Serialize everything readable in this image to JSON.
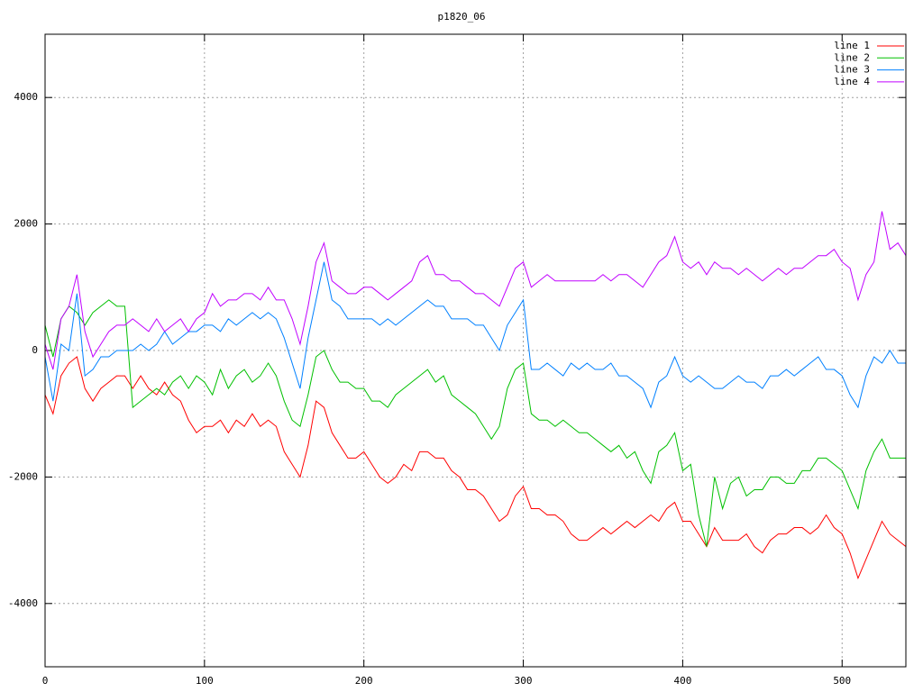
{
  "chart_data": {
    "type": "line",
    "title": "p1820_06",
    "x": [
      0,
      5,
      10,
      15,
      20,
      25,
      30,
      35,
      40,
      45,
      50,
      55,
      60,
      65,
      70,
      75,
      80,
      85,
      90,
      95,
      100,
      105,
      110,
      115,
      120,
      125,
      130,
      135,
      140,
      145,
      150,
      155,
      160,
      165,
      170,
      175,
      180,
      185,
      190,
      195,
      200,
      205,
      210,
      215,
      220,
      225,
      230,
      235,
      240,
      245,
      250,
      255,
      260,
      265,
      270,
      275,
      280,
      285,
      290,
      295,
      300,
      305,
      310,
      315,
      320,
      325,
      330,
      335,
      340,
      345,
      350,
      355,
      360,
      365,
      370,
      375,
      380,
      385,
      390,
      395,
      400,
      405,
      410,
      415,
      420,
      425,
      430,
      435,
      440,
      445,
      450,
      455,
      460,
      465,
      470,
      475,
      480,
      485,
      490,
      495,
      500,
      505,
      510,
      515,
      520,
      525,
      530,
      535,
      540
    ],
    "series": [
      {
        "name": "line 1",
        "color": "#ff0000",
        "values": [
          -700,
          -1000,
          -400,
          -200,
          -100,
          -600,
          -800,
          -600,
          -500,
          -400,
          -400,
          -600,
          -400,
          -600,
          -700,
          -500,
          -700,
          -800,
          -1100,
          -1300,
          -1200,
          -1200,
          -1100,
          -1300,
          -1100,
          -1200,
          -1000,
          -1200,
          -1100,
          -1200,
          -1600,
          -1800,
          -2000,
          -1500,
          -800,
          -900,
          -1300,
          -1500,
          -1700,
          -1700,
          -1600,
          -1800,
          -2000,
          -2100,
          -2000,
          -1800,
          -1900,
          -1600,
          -1600,
          -1700,
          -1700,
          -1900,
          -2000,
          -2200,
          -2200,
          -2300,
          -2500,
          -2700,
          -2600,
          -2300,
          -2150,
          -2500,
          -2500,
          -2600,
          -2600,
          -2700,
          -2900,
          -3000,
          -3000,
          -2900,
          -2800,
          -2900,
          -2800,
          -2700,
          -2800,
          -2700,
          -2600,
          -2700,
          -2500,
          -2400,
          -2700,
          -2700,
          -2900,
          -3100,
          -2800,
          -3000,
          -3000,
          -3000,
          -2900,
          -3100,
          -3200,
          -3000,
          -2900,
          -2900,
          -2800,
          -2800,
          -2900,
          -2800,
          -2600,
          -2800,
          -2900,
          -3200,
          -3600,
          -3300,
          -3000,
          -2700,
          -2900,
          -3000,
          -3100
        ]
      },
      {
        "name": "line 2",
        "color": "#00c000",
        "values": [
          400,
          -100,
          500,
          700,
          600,
          400,
          600,
          700,
          800,
          700,
          700,
          -900,
          -800,
          -700,
          -600,
          -700,
          -500,
          -400,
          -600,
          -400,
          -500,
          -700,
          -300,
          -600,
          -400,
          -300,
          -500,
          -400,
          -200,
          -400,
          -800,
          -1100,
          -1200,
          -700,
          -100,
          0,
          -300,
          -500,
          -500,
          -600,
          -600,
          -800,
          -800,
          -900,
          -700,
          -600,
          -500,
          -400,
          -300,
          -500,
          -400,
          -700,
          -800,
          -900,
          -1000,
          -1200,
          -1400,
          -1200,
          -600,
          -300,
          -200,
          -1000,
          -1100,
          -1100,
          -1200,
          -1100,
          -1200,
          -1300,
          -1300,
          -1400,
          -1500,
          -1600,
          -1500,
          -1700,
          -1600,
          -1900,
          -2100,
          -1600,
          -1500,
          -1300,
          -1900,
          -1800,
          -2600,
          -3100,
          -2000,
          -2500,
          -2100,
          -2000,
          -2300,
          -2200,
          -2200,
          -2000,
          -2000,
          -2100,
          -2100,
          -1900,
          -1900,
          -1700,
          -1700,
          -1800,
          -1900,
          -2200,
          -2500,
          -1900,
          -1600,
          -1400,
          -1700,
          -1700,
          -1700
        ]
      },
      {
        "name": "line 3",
        "color": "#0080ff",
        "values": [
          -100,
          -800,
          100,
          0,
          900,
          -400,
          -300,
          -100,
          -100,
          0,
          0,
          0,
          100,
          0,
          100,
          300,
          100,
          200,
          300,
          300,
          400,
          400,
          300,
          500,
          400,
          500,
          600,
          500,
          600,
          500,
          200,
          -200,
          -600,
          200,
          800,
          1400,
          800,
          700,
          500,
          500,
          500,
          500,
          400,
          500,
          400,
          500,
          600,
          700,
          800,
          700,
          700,
          500,
          500,
          500,
          400,
          400,
          200,
          0,
          400,
          600,
          800,
          -300,
          -300,
          -200,
          -300,
          -400,
          -200,
          -300,
          -200,
          -300,
          -300,
          -200,
          -400,
          -400,
          -500,
          -600,
          -900,
          -500,
          -400,
          -100,
          -400,
          -500,
          -400,
          -500,
          -600,
          -600,
          -500,
          -400,
          -500,
          -500,
          -600,
          -400,
          -400,
          -300,
          -400,
          -300,
          -200,
          -100,
          -300,
          -300,
          -400,
          -700,
          -900,
          -400,
          -100,
          -200,
          0,
          -200,
          -200
        ]
      },
      {
        "name": "line 4",
        "color": "#c000ff",
        "values": [
          100,
          -300,
          500,
          700,
          1200,
          300,
          -100,
          100,
          300,
          400,
          400,
          500,
          400,
          300,
          500,
          300,
          400,
          500,
          300,
          500,
          600,
          900,
          700,
          800,
          800,
          900,
          900,
          800,
          1000,
          800,
          800,
          500,
          100,
          700,
          1400,
          1700,
          1100,
          1000,
          900,
          900,
          1000,
          1000,
          900,
          800,
          900,
          1000,
          1100,
          1400,
          1500,
          1200,
          1200,
          1100,
          1100,
          1000,
          900,
          900,
          800,
          700,
          1000,
          1300,
          1400,
          1000,
          1100,
          1200,
          1100,
          1100,
          1100,
          1100,
          1100,
          1100,
          1200,
          1100,
          1200,
          1200,
          1100,
          1000,
          1200,
          1400,
          1500,
          1800,
          1400,
          1300,
          1400,
          1200,
          1400,
          1300,
          1300,
          1200,
          1300,
          1200,
          1100,
          1200,
          1300,
          1200,
          1300,
          1300,
          1400,
          1500,
          1500,
          1600,
          1400,
          1300,
          800,
          1200,
          1400,
          2200,
          1600,
          1700,
          1500
        ]
      }
    ],
    "xlim": [
      0,
      540
    ],
    "xticks": [
      0,
      100,
      200,
      300,
      400,
      500
    ],
    "ylim": [
      -5000,
      5000
    ],
    "yticks": [
      -4000,
      -2000,
      0,
      2000,
      4000
    ],
    "grid": true,
    "legend": "top-right"
  }
}
